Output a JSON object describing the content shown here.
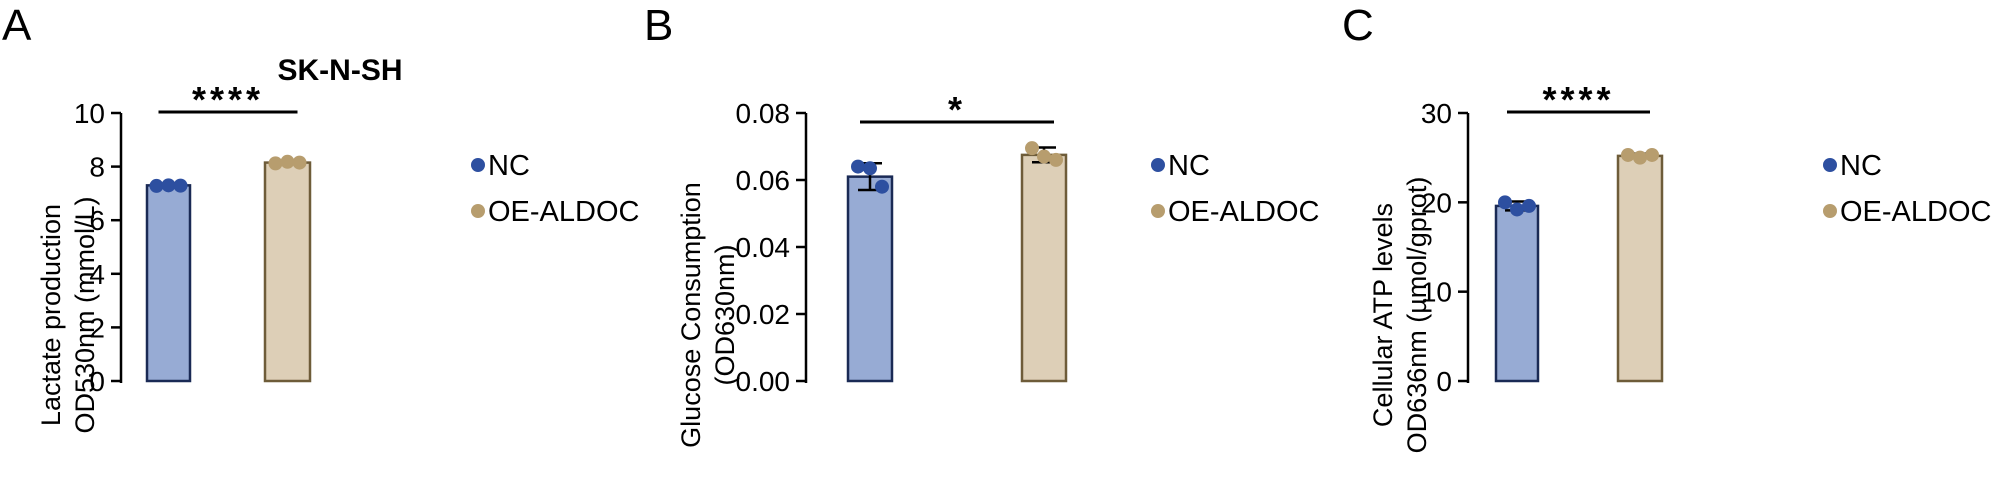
{
  "figure_title": "SK-N-SH",
  "colors": {
    "nc_bar": "#97abd4",
    "nc_point": "#2d4fa0",
    "oe_bar": "#ddcfb7",
    "oe_point": "#b79d6e",
    "oe_edge": "#6e5c39"
  },
  "chart_data": [
    {
      "type": "bar",
      "panel_label": "A",
      "ylabel_lines": [
        "Lactate production",
        "OD530nm (mmol/L)"
      ],
      "ylim": [
        0,
        10
      ],
      "yticks": [
        0,
        2,
        4,
        6,
        8,
        10
      ],
      "ytick_labels": [
        "0",
        "2",
        "4",
        "6",
        "8",
        "10"
      ],
      "categories": [
        "NC",
        "OE-ALDOC"
      ],
      "values": [
        7.3,
        8.15
      ],
      "errors": [
        0.06,
        0.06
      ],
      "points": [
        [
          7.28,
          7.3,
          7.29
        ],
        [
          8.12,
          8.18,
          8.15
        ]
      ],
      "significance": "****",
      "legend": [
        "NC",
        "OE-ALDOC"
      ],
      "legend_position": "right"
    },
    {
      "type": "bar",
      "panel_label": "B",
      "ylabel_lines": [
        "Glucose Consumption",
        "(OD630nm)"
      ],
      "ylim": [
        0,
        0.08
      ],
      "yticks": [
        0,
        0.02,
        0.04,
        0.06,
        0.08
      ],
      "ytick_labels": [
        "0.00",
        "0.02",
        "0.04",
        "0.06",
        "0.08"
      ],
      "categories": [
        "NC",
        "OE-ALDOC"
      ],
      "values": [
        0.061,
        0.0675
      ],
      "errors": [
        0.004,
        0.0022
      ],
      "points": [
        [
          0.064,
          0.0635,
          0.058
        ],
        [
          0.0695,
          0.067,
          0.066
        ]
      ],
      "significance": "*",
      "legend": [
        "NC",
        "OE-ALDOC"
      ],
      "legend_position": "right"
    },
    {
      "type": "bar",
      "panel_label": "C",
      "ylabel_lines": [
        "Cellular ATP levels",
        "OD636nm (µmol/gprot)"
      ],
      "ylim": [
        0,
        30
      ],
      "yticks": [
        0,
        10,
        20,
        30
      ],
      "ytick_labels": [
        "0",
        "10",
        "20",
        "30"
      ],
      "categories": [
        "NC",
        "OE-ALDOC"
      ],
      "values": [
        19.6,
        25.2
      ],
      "errors": [
        0.5,
        0.25
      ],
      "points": [
        [
          20.0,
          19.2,
          19.6
        ],
        [
          25.3,
          25.0,
          25.3
        ]
      ],
      "significance": "****",
      "legend": [
        "NC",
        "OE-ALDOC"
      ],
      "legend_position": "right"
    }
  ]
}
